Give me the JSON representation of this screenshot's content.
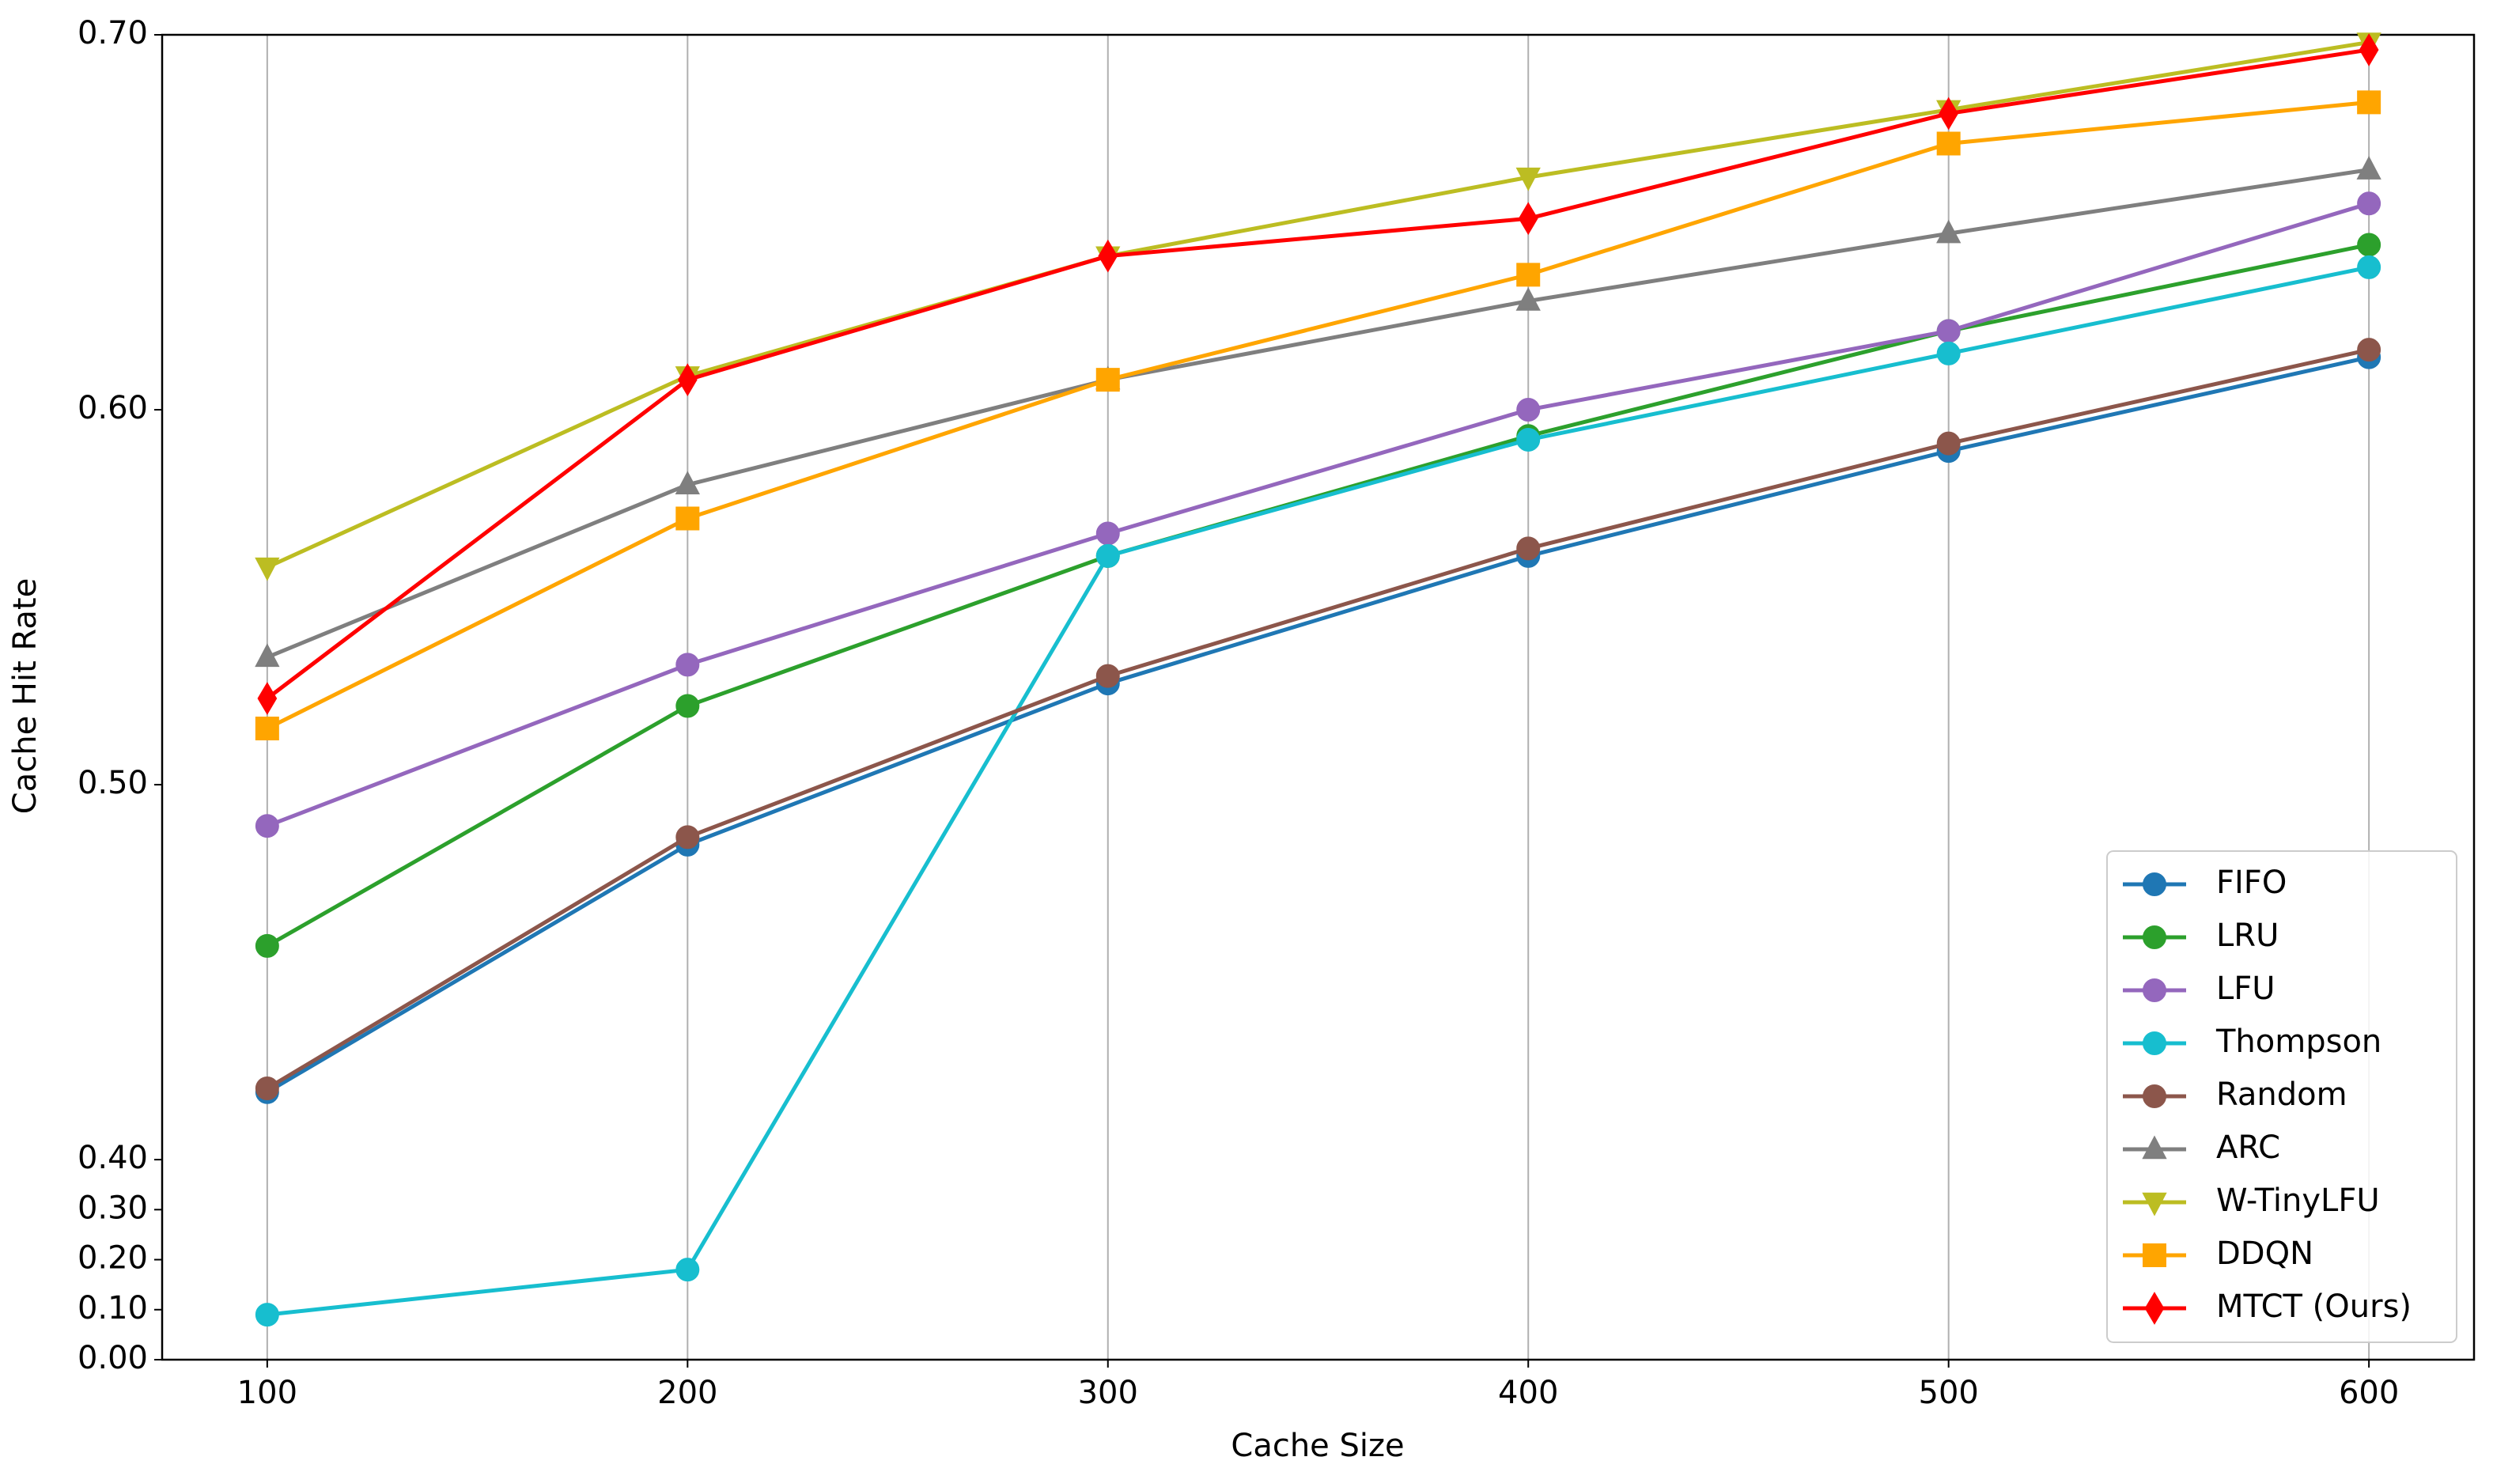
{
  "chart_data": {
    "type": "line",
    "xlabel": "Cache Size",
    "ylabel": "Cache Hit Rate",
    "x": [
      100,
      200,
      300,
      400,
      500,
      600
    ],
    "xlim": [
      75,
      625
    ],
    "xticks": [
      100,
      200,
      300,
      400,
      500,
      600
    ],
    "ylim": [
      0,
      0.7
    ],
    "ybreak": 0.4,
    "yticks": [
      {
        "value": 0,
        "label": "0.00"
      },
      {
        "value": 0.1,
        "label": "0.10"
      },
      {
        "value": 0.2,
        "label": "0.20"
      },
      {
        "value": 0.3,
        "label": "0.30"
      },
      {
        "value": 0.4,
        "label": "0.40"
      },
      {
        "value": 0.5,
        "label": "0.50"
      },
      {
        "value": 0.6,
        "label": "0.60"
      },
      {
        "value": 0.7,
        "label": "0.70"
      }
    ],
    "grid": "x",
    "legend": "lower right",
    "series": [
      {
        "name": "FIFO",
        "color": "#1f77b4",
        "marker": "circle",
        "values": [
          0.418,
          0.484,
          0.527,
          0.561,
          0.589,
          0.614
        ]
      },
      {
        "name": "LRU",
        "color": "#2ca02c",
        "marker": "circle",
        "values": [
          0.457,
          0.521,
          0.561,
          0.593,
          0.621,
          0.644
        ]
      },
      {
        "name": "LFU",
        "color": "#9467bd",
        "marker": "circle",
        "values": [
          0.489,
          0.532,
          0.567,
          0.6,
          0.621,
          0.655
        ]
      },
      {
        "name": "Thompson",
        "color": "#17becf",
        "marker": "circle",
        "values": [
          0.09,
          0.18,
          0.561,
          0.592,
          0.615,
          0.638
        ]
      },
      {
        "name": "Random",
        "color": "#8c564b",
        "marker": "circle",
        "values": [
          0.419,
          0.486,
          0.529,
          0.563,
          0.591,
          0.616
        ]
      },
      {
        "name": "ARC",
        "color": "#7f7f7f",
        "marker": "triangle-up",
        "values": [
          0.534,
          0.58,
          0.608,
          0.629,
          0.647,
          0.664
        ]
      },
      {
        "name": "W-TinyLFU",
        "color": "#bcbd22",
        "marker": "triangle-down",
        "values": [
          0.558,
          0.609,
          0.641,
          0.662,
          0.68,
          0.698
        ]
      },
      {
        "name": "DDQN",
        "color": "#ffa500",
        "marker": "square",
        "values": [
          0.515,
          0.571,
          0.608,
          0.636,
          0.671,
          0.682
        ]
      },
      {
        "name": "MTCT (Ours)",
        "color": "#ff0000",
        "marker": "diamond",
        "values": [
          0.523,
          0.608,
          0.641,
          0.651,
          0.679,
          0.696
        ]
      }
    ]
  }
}
